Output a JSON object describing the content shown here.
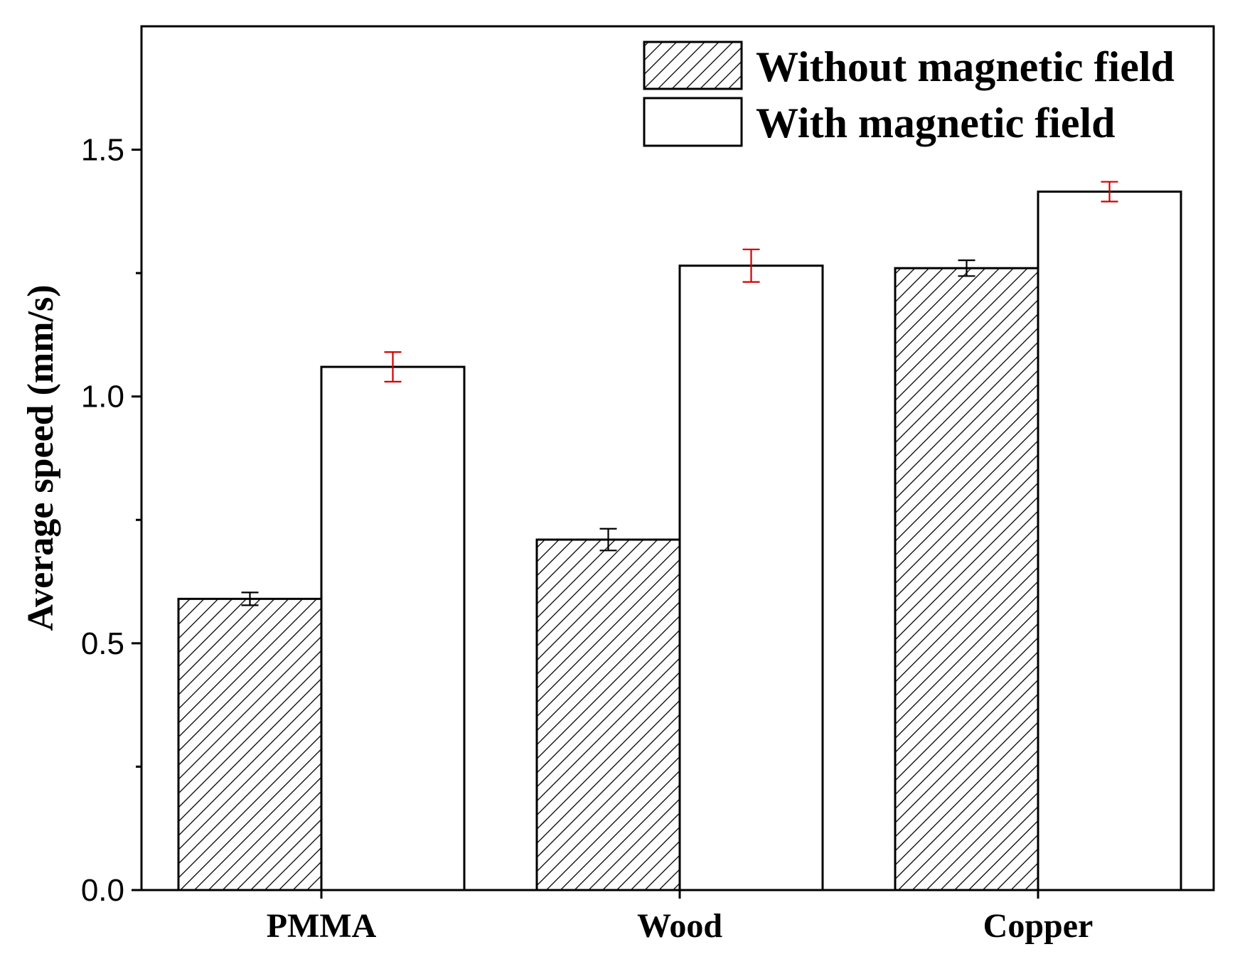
{
  "chart_data": {
    "type": "bar",
    "title": "",
    "xlabel": "",
    "ylabel": "Average speed (mm/s)",
    "categories": [
      "PMMA",
      "Wood",
      "Copper"
    ],
    "ylim": [
      0,
      1.75
    ],
    "yticks": [
      0.0,
      0.5,
      1.0,
      1.5
    ],
    "ytick_labels": [
      "0.0",
      "0.5",
      "1.0",
      "1.5"
    ],
    "yminor_ticks": [
      0.25,
      0.75,
      1.25
    ],
    "grid": false,
    "legend_position": "top-right",
    "series": [
      {
        "name": "Without magnetic field",
        "fill": "hatched",
        "values": [
          0.59,
          0.71,
          1.26
        ],
        "errors": [
          0.013,
          0.022,
          0.016
        ],
        "error_color": "#000000"
      },
      {
        "name": "With magnetic field",
        "fill": "white",
        "values": [
          1.06,
          1.265,
          1.415
        ],
        "errors": [
          0.03,
          0.033,
          0.02
        ],
        "error_color": "#d00000"
      }
    ]
  }
}
